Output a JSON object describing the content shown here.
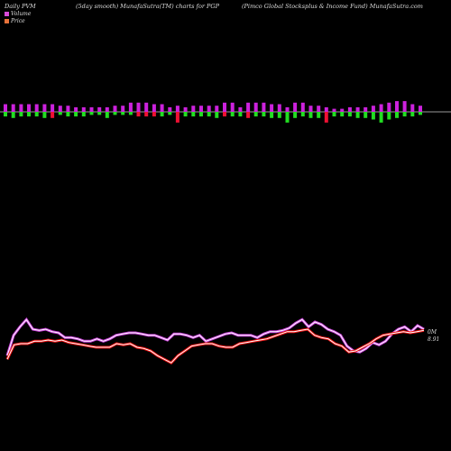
{
  "header": {
    "left": "Daily PVM",
    "middle": "(5day smooth) MunafaSutra(TM) charts for PGP",
    "right": "(Pimco  Global Stocksplus & Income   Fund) MunafaSutra.com"
  },
  "legend": {
    "volume": "Volume",
    "price": "Price",
    "volume_color": "#d84ad8",
    "price_color": "#e8723a"
  },
  "end_labels": {
    "line1": "0M",
    "line2": "8.91"
  },
  "chart_data": {
    "type": "line",
    "volume_bars": {
      "up": [
        5,
        5,
        5,
        5,
        5,
        5,
        5,
        4,
        4,
        3,
        3,
        3,
        3,
        3,
        4,
        4,
        6,
        6,
        6,
        5,
        5,
        3,
        4,
        3,
        4,
        4,
        4,
        4,
        6,
        6,
        3,
        6,
        6,
        6,
        5,
        5,
        3,
        6,
        6,
        4,
        4,
        3,
        2,
        2,
        3,
        3,
        3,
        4,
        5,
        6,
        7,
        7,
        5,
        4
      ],
      "down": [
        3,
        4,
        3,
        3,
        3,
        4,
        4,
        2,
        3,
        3,
        3,
        2,
        2,
        4,
        2,
        2,
        2,
        3,
        3,
        3,
        3,
        2,
        7,
        3,
        3,
        3,
        3,
        4,
        3,
        3,
        3,
        4,
        3,
        3,
        4,
        4,
        7,
        4,
        3,
        4,
        4,
        7,
        3,
        3,
        3,
        4,
        4,
        5,
        7,
        5,
        4,
        3,
        3,
        2
      ],
      "down_colors": [
        "g",
        "g",
        "g",
        "g",
        "g",
        "g",
        "r",
        "g",
        "g",
        "g",
        "g",
        "g",
        "g",
        "g",
        "g",
        "g",
        "g",
        "r",
        "r",
        "r",
        "g",
        "g",
        "r",
        "g",
        "g",
        "g",
        "g",
        "g",
        "r",
        "g",
        "g",
        "r",
        "g",
        "g",
        "g",
        "g",
        "g",
        "g",
        "g",
        "g",
        "g",
        "r",
        "g",
        "g",
        "g",
        "g",
        "g",
        "g",
        "g",
        "g",
        "g",
        "g",
        "g",
        "g"
      ]
    },
    "series": [
      {
        "values": [
          8.88,
          9.05,
          9.12,
          9.18,
          9.1,
          9.09,
          9.1,
          9.08,
          9.07,
          9.03,
          9.03,
          9.02,
          9.0,
          9.0,
          9.02,
          9.0,
          9.02,
          9.05,
          9.06,
          9.07,
          9.07,
          9.06,
          9.05,
          9.05,
          9.03,
          9.01,
          9.06,
          9.06,
          9.05,
          9.03,
          9.05,
          9.0,
          9.02,
          9.04,
          9.06,
          9.07,
          9.05,
          9.05,
          9.05,
          9.03,
          9.06,
          9.08,
          9.08,
          9.09,
          9.11,
          9.15,
          9.18,
          9.12,
          9.16,
          9.14,
          9.1,
          9.08,
          9.05,
          8.96,
          8.92,
          8.91,
          8.94,
          8.99,
          8.97,
          9.0,
          9.06,
          9.1,
          9.12,
          9.08,
          9.13,
          9.1
        ]
      },
      {
        "values": [
          8.85,
          8.97,
          8.98,
          8.98,
          9.0,
          9.0,
          9.01,
          9.0,
          9.01,
          8.99,
          8.98,
          8.97,
          8.96,
          8.95,
          8.95,
          8.95,
          8.98,
          8.97,
          8.98,
          8.95,
          8.94,
          8.92,
          8.88,
          8.85,
          8.82,
          8.88,
          8.92,
          8.96,
          8.97,
          8.98,
          8.98,
          8.96,
          8.95,
          8.95,
          8.98,
          8.99,
          9.0,
          9.01,
          9.02,
          9.04,
          9.06,
          9.08,
          9.08,
          9.09,
          9.1,
          9.05,
          9.03,
          9.02,
          8.98,
          8.96,
          8.91,
          8.92,
          8.95,
          8.98,
          9.02,
          9.05,
          9.06,
          9.07,
          9.08,
          9.07,
          9.08,
          9.09
        ]
      }
    ]
  }
}
